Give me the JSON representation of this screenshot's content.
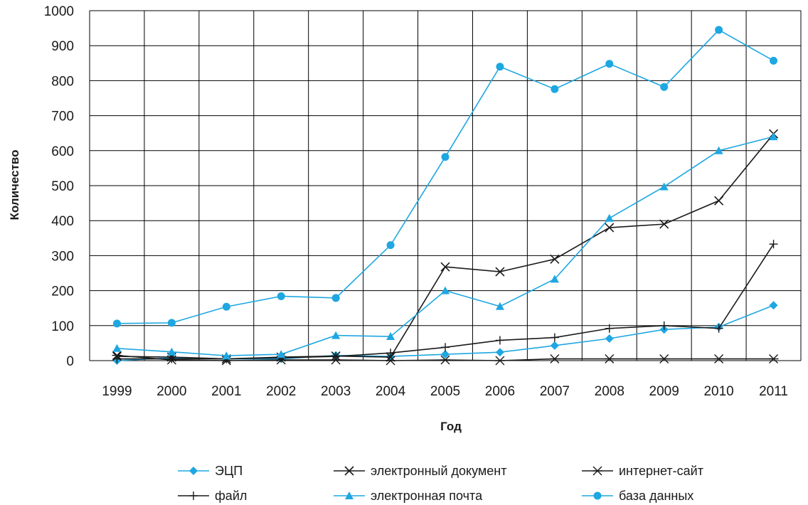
{
  "chart_data": {
    "type": "line",
    "title": "",
    "xlabel": "Год",
    "ylabel": "Количество",
    "x": [
      "1999",
      "2000",
      "2001",
      "2002",
      "2003",
      "2004",
      "2005",
      "2006",
      "2007",
      "2008",
      "2009",
      "2010",
      "2011"
    ],
    "ylim": [
      0,
      1000
    ],
    "yticks": [
      "0",
      "100",
      "200",
      "300",
      "400",
      "500",
      "600",
      "700",
      "800",
      "900",
      "1000"
    ],
    "grid": true,
    "legend_position": "bottom",
    "series": [
      {
        "name": "ЭЦП",
        "marker": "diamond",
        "color": "#1ea7e1",
        "values": [
          0,
          8,
          5,
          5,
          15,
          12,
          18,
          24,
          43,
          63,
          89,
          96,
          158
        ]
      },
      {
        "name": "электронный документ",
        "marker": "x",
        "color": "#1a1a1a",
        "values": [
          12,
          10,
          5,
          10,
          13,
          10,
          268,
          254,
          290,
          380,
          390,
          457,
          648
        ]
      },
      {
        "name": "интернет-сайт",
        "marker": "star",
        "color": "#1a1a1a",
        "values": [
          15,
          2,
          0,
          2,
          2,
          0,
          2,
          0,
          5,
          5,
          5,
          5,
          5
        ]
      },
      {
        "name": "файл",
        "marker": "plus",
        "color": "#1a1a1a",
        "values": [
          5,
          5,
          5,
          8,
          12,
          22,
          38,
          58,
          66,
          92,
          100,
          92,
          333
        ]
      },
      {
        "name": "электронная почта",
        "marker": "triangle",
        "color": "#1ea7e1",
        "values": [
          35,
          25,
          14,
          18,
          72,
          69,
          200,
          155,
          233,
          407,
          497,
          600,
          640
        ]
      },
      {
        "name": "база данных",
        "marker": "circle",
        "color": "#1ea7e1",
        "values": [
          106,
          108,
          154,
          184,
          179,
          330,
          582,
          840,
          776,
          848,
          782,
          945,
          857
        ]
      }
    ]
  }
}
